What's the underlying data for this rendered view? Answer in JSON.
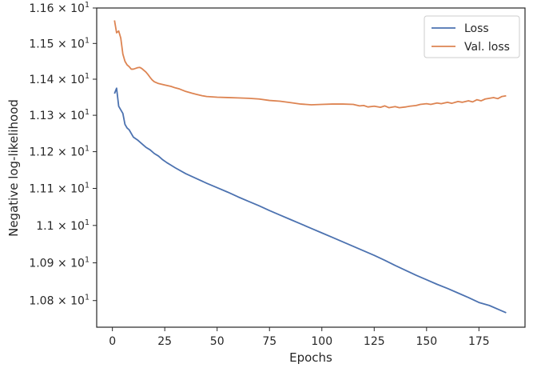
{
  "chart_data": {
    "type": "line",
    "title": "",
    "xlabel": "Epochs",
    "ylabel": "Negative log-likelihood",
    "xlim": [
      -7.5,
      197
    ],
    "ylim": [
      10.73,
      11.6
    ],
    "y_scale": "log",
    "grid": false,
    "legend_position": "top-right",
    "xticks": [
      {
        "value": 0,
        "label": "0"
      },
      {
        "value": 25,
        "label": "25"
      },
      {
        "value": 50,
        "label": "50"
      },
      {
        "value": 75,
        "label": "75"
      },
      {
        "value": 100,
        "label": "100"
      },
      {
        "value": 125,
        "label": "125"
      },
      {
        "value": 150,
        "label": "150"
      },
      {
        "value": 175,
        "label": "175"
      }
    ],
    "yticks": [
      {
        "value": 10.8,
        "mantissa": "1.08",
        "exponent": "1"
      },
      {
        "value": 10.9,
        "mantissa": "1.09",
        "exponent": "1"
      },
      {
        "value": 11.0,
        "mantissa": "1.1",
        "exponent": "1"
      },
      {
        "value": 11.1,
        "mantissa": "1.11",
        "exponent": "1"
      },
      {
        "value": 11.2,
        "mantissa": "1.12",
        "exponent": "1"
      },
      {
        "value": 11.3,
        "mantissa": "1.13",
        "exponent": "1"
      },
      {
        "value": 11.4,
        "mantissa": "1.14",
        "exponent": "1"
      },
      {
        "value": 11.5,
        "mantissa": "1.15",
        "exponent": "1"
      },
      {
        "value": 11.6,
        "mantissa": "1.16",
        "exponent": "1"
      }
    ],
    "series": [
      {
        "name": "Loss",
        "color": "#4c72b0",
        "points": [
          [
            1,
            11.36
          ],
          [
            2,
            11.375
          ],
          [
            3,
            11.325
          ],
          [
            4,
            11.315
          ],
          [
            5,
            11.305
          ],
          [
            6,
            11.275
          ],
          [
            7,
            11.265
          ],
          [
            8,
            11.26
          ],
          [
            9,
            11.25
          ],
          [
            10,
            11.24
          ],
          [
            12,
            11.232
          ],
          [
            14,
            11.222
          ],
          [
            16,
            11.212
          ],
          [
            18,
            11.205
          ],
          [
            20,
            11.195
          ],
          [
            22,
            11.188
          ],
          [
            24,
            11.178
          ],
          [
            26,
            11.17
          ],
          [
            28,
            11.163
          ],
          [
            30,
            11.156
          ],
          [
            35,
            11.14
          ],
          [
            40,
            11.127
          ],
          [
            45,
            11.114
          ],
          [
            50,
            11.102
          ],
          [
            55,
            11.09
          ],
          [
            60,
            11.077
          ],
          [
            65,
            11.065
          ],
          [
            70,
            11.053
          ],
          [
            75,
            11.04
          ],
          [
            80,
            11.028
          ],
          [
            85,
            11.016
          ],
          [
            90,
            11.004
          ],
          [
            95,
            10.992
          ],
          [
            100,
            10.98
          ],
          [
            105,
            10.968
          ],
          [
            110,
            10.956
          ],
          [
            115,
            10.944
          ],
          [
            120,
            10.932
          ],
          [
            125,
            10.92
          ],
          [
            130,
            10.907
          ],
          [
            135,
            10.893
          ],
          [
            140,
            10.88
          ],
          [
            145,
            10.867
          ],
          [
            150,
            10.855
          ],
          [
            155,
            10.843
          ],
          [
            160,
            10.832
          ],
          [
            165,
            10.82
          ],
          [
            170,
            10.808
          ],
          [
            175,
            10.795
          ],
          [
            180,
            10.787
          ],
          [
            185,
            10.775
          ],
          [
            188,
            10.768
          ]
        ]
      },
      {
        "name": "Val. loss",
        "color": "#dd8452",
        "points": [
          [
            1,
            11.565
          ],
          [
            2,
            11.53
          ],
          [
            3,
            11.535
          ],
          [
            4,
            11.515
          ],
          [
            5,
            11.47
          ],
          [
            6,
            11.45
          ],
          [
            7,
            11.44
          ],
          [
            8,
            11.435
          ],
          [
            9,
            11.428
          ],
          [
            10,
            11.428
          ],
          [
            11,
            11.43
          ],
          [
            12,
            11.432
          ],
          [
            13,
            11.433
          ],
          [
            14,
            11.43
          ],
          [
            15,
            11.425
          ],
          [
            16,
            11.42
          ],
          [
            17,
            11.413
          ],
          [
            18,
            11.405
          ],
          [
            19,
            11.398
          ],
          [
            20,
            11.393
          ],
          [
            22,
            11.388
          ],
          [
            25,
            11.384
          ],
          [
            28,
            11.38
          ],
          [
            30,
            11.376
          ],
          [
            32,
            11.373
          ],
          [
            35,
            11.366
          ],
          [
            38,
            11.361
          ],
          [
            40,
            11.358
          ],
          [
            43,
            11.354
          ],
          [
            45,
            11.352
          ],
          [
            50,
            11.35
          ],
          [
            55,
            11.349
          ],
          [
            60,
            11.348
          ],
          [
            65,
            11.347
          ],
          [
            70,
            11.345
          ],
          [
            75,
            11.341
          ],
          [
            80,
            11.339
          ],
          [
            85,
            11.335
          ],
          [
            90,
            11.331
          ],
          [
            95,
            11.329
          ],
          [
            100,
            11.33
          ],
          [
            105,
            11.331
          ],
          [
            110,
            11.331
          ],
          [
            115,
            11.33
          ],
          [
            118,
            11.326
          ],
          [
            120,
            11.327
          ],
          [
            122,
            11.323
          ],
          [
            125,
            11.325
          ],
          [
            128,
            11.322
          ],
          [
            130,
            11.326
          ],
          [
            132,
            11.321
          ],
          [
            135,
            11.324
          ],
          [
            137,
            11.321
          ],
          [
            140,
            11.323
          ],
          [
            142,
            11.325
          ],
          [
            145,
            11.327
          ],
          [
            147,
            11.33
          ],
          [
            150,
            11.332
          ],
          [
            152,
            11.33
          ],
          [
            155,
            11.334
          ],
          [
            157,
            11.332
          ],
          [
            160,
            11.336
          ],
          [
            162,
            11.333
          ],
          [
            165,
            11.338
          ],
          [
            167,
            11.336
          ],
          [
            170,
            11.34
          ],
          [
            172,
            11.337
          ],
          [
            174,
            11.343
          ],
          [
            176,
            11.34
          ],
          [
            178,
            11.345
          ],
          [
            180,
            11.347
          ],
          [
            182,
            11.349
          ],
          [
            184,
            11.346
          ],
          [
            186,
            11.352
          ],
          [
            188,
            11.354
          ]
        ]
      }
    ]
  }
}
